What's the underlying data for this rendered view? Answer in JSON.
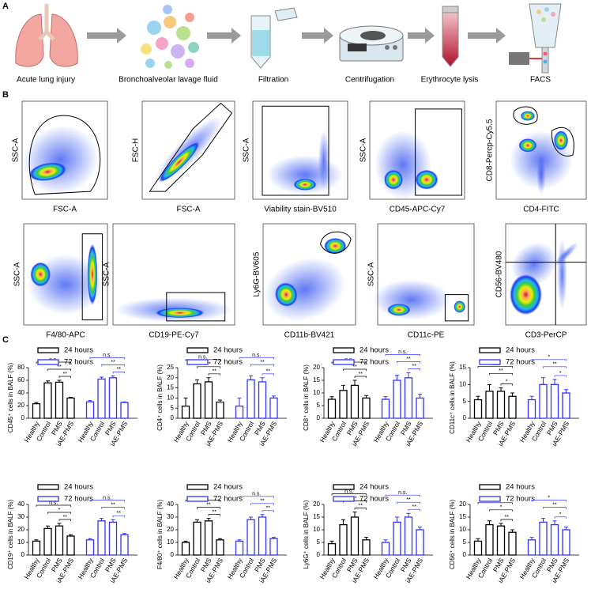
{
  "panels": {
    "a": {
      "label": "A",
      "steps": [
        "Acute lung injury",
        "Bronchoalveolar lavage fluid",
        "Filtration",
        "Centrifugation",
        "Erythrocyte lysis",
        "FACS"
      ]
    },
    "b": {
      "label": "B",
      "plots": [
        {
          "y_label": "SSC-A",
          "x_label": "FSC-A"
        },
        {
          "y_label": "FSC-H",
          "x_label": "FSC-A"
        },
        {
          "y_label": "SSC-A",
          "x_label": "Viability stain-BV510"
        },
        {
          "y_label": "SSC-A",
          "x_label": "CD45-APC-Cy7"
        },
        {
          "y_label": "CD8-Percp-Cy5.5",
          "x_label": "CD4-FITC"
        },
        {
          "y_label": "SSC-A",
          "x_label": "F4/80-APC"
        },
        {
          "y_label": "SSC-A",
          "x_label": "CD19-PE-Cy7"
        },
        {
          "y_label": "Ly6G-BV605",
          "x_label": "CD11b-BV421"
        },
        {
          "y_label": "SSC-A",
          "x_label": "CD11c-PE"
        },
        {
          "y_label": "CD56-BV480",
          "x_label": "CD3-PerCP"
        }
      ]
    },
    "c": {
      "label": "C"
    }
  },
  "chart_data": [
    {
      "type": "bar",
      "ylabel": "CD45⁺ cells  in BALF (%)",
      "categories": [
        "Healthy",
        "Control",
        "PMS",
        "iAE-PMS"
      ],
      "ylim": [
        0,
        80
      ],
      "yticks": [
        0,
        20,
        40,
        60,
        80
      ],
      "series": [
        {
          "name": "24 hours",
          "color": "#000000",
          "values": [
            23,
            56,
            57,
            32
          ],
          "errors": [
            2,
            3,
            3,
            1
          ],
          "significance": [
            "n.s.",
            "**",
            "**"
          ]
        },
        {
          "name": "72 hours",
          "color": "#3333ff",
          "values": [
            26,
            62,
            64,
            25
          ],
          "errors": [
            2,
            3,
            3,
            1
          ],
          "significance": [
            "n.s.",
            "**",
            "**"
          ]
        }
      ]
    },
    {
      "type": "bar",
      "ylabel": "CD4⁺ cells  in BALF (%)",
      "categories": [
        "Healthy",
        "Control",
        "PMS",
        "iAE-PMS"
      ],
      "ylim": [
        0,
        25
      ],
      "yticks": [
        0,
        5,
        10,
        15,
        20,
        25
      ],
      "series": [
        {
          "name": "24 hours",
          "color": "#000000",
          "values": [
            6,
            17,
            18,
            8
          ],
          "errors": [
            4,
            2,
            2,
            1
          ],
          "significance": [
            "n.s.",
            "**",
            "**"
          ]
        },
        {
          "name": "72 hours",
          "color": "#3333ff",
          "values": [
            6,
            19,
            18,
            10
          ],
          "errors": [
            4,
            2,
            2,
            1
          ],
          "significance": [
            "n.s.",
            "**",
            "**"
          ]
        }
      ]
    },
    {
      "type": "bar",
      "ylabel": "CD8⁺ cells  in BALF (%)",
      "categories": [
        "Healthy",
        "Control",
        "PMS",
        "iAE-PMS"
      ],
      "ylim": [
        0,
        20
      ],
      "yticks": [
        0,
        5,
        10,
        15,
        20
      ],
      "series": [
        {
          "name": "24 hours",
          "color": "#000000",
          "values": [
            7.5,
            11,
            13,
            8
          ],
          "errors": [
            1,
            2,
            2,
            1
          ],
          "significance": [
            "n.s.",
            "**",
            "**"
          ]
        },
        {
          "name": "72 hours",
          "color": "#3333ff",
          "values": [
            7.5,
            15,
            16,
            8
          ],
          "errors": [
            1,
            2,
            2,
            1.5
          ],
          "significance": [
            "n.s.",
            "**",
            "**"
          ]
        }
      ]
    },
    {
      "type": "bar",
      "ylabel": "CD11c⁺ cells  in BALF (%)",
      "categories": [
        "Healthy",
        "Control",
        "PMS",
        "iAE-PMS"
      ],
      "ylim": [
        0,
        15
      ],
      "yticks": [
        0,
        5,
        10,
        15
      ],
      "series": [
        {
          "name": "24 hours",
          "color": "#000000",
          "values": [
            5.5,
            8,
            8,
            6.5
          ],
          "errors": [
            1,
            2,
            1,
            1
          ],
          "significance": [
            "n.s.",
            "**",
            "*"
          ]
        },
        {
          "name": "72 hours",
          "color": "#3333ff",
          "values": [
            5.5,
            10,
            10,
            7.5
          ],
          "errors": [
            1,
            2,
            1.5,
            1
          ],
          "significance": [
            "*",
            "**",
            "*"
          ]
        }
      ]
    },
    {
      "type": "bar",
      "ylabel": "CD19⁺ cells  in BALF (%)",
      "categories": [
        "Healthy",
        "Control",
        "PMS",
        "iAE-PMS"
      ],
      "ylim": [
        0,
        40
      ],
      "yticks": [
        0,
        10,
        20,
        30,
        40
      ],
      "series": [
        {
          "name": "24 hours",
          "color": "#000000",
          "values": [
            11,
            21,
            23,
            15
          ],
          "errors": [
            1,
            2,
            2,
            1
          ],
          "significance": [
            "n.s.",
            "*",
            "**"
          ]
        },
        {
          "name": "72 hours",
          "color": "#3333ff",
          "values": [
            12,
            27,
            26,
            16
          ],
          "errors": [
            1,
            2,
            2,
            1
          ],
          "significance": [
            "n.s.",
            "**",
            "**"
          ]
        }
      ]
    },
    {
      "type": "bar",
      "ylabel": "F4/80⁺ cells  in BALF (%)",
      "categories": [
        "Healthy",
        "Control",
        "PMS",
        "iAE-PMS"
      ],
      "ylim": [
        0,
        40
      ],
      "yticks": [
        0,
        10,
        20,
        30,
        40
      ],
      "series": [
        {
          "name": "24 hours",
          "color": "#000000",
          "values": [
            10,
            26,
            27,
            12
          ],
          "errors": [
            1,
            2,
            2,
            1
          ],
          "significance": [
            "n.s.",
            "**",
            "**"
          ]
        },
        {
          "name": "72 hours",
          "color": "#3333ff",
          "values": [
            11,
            28,
            30,
            13
          ],
          "errors": [
            1,
            2,
            2,
            1
          ],
          "significance": [
            "n.s.",
            "**",
            "**"
          ]
        }
      ]
    },
    {
      "type": "bar",
      "ylabel": "Ly6G⁺ cells  in BALF (%)",
      "categories": [
        "Healthy",
        "Control",
        "PMS",
        "iAE-PMS"
      ],
      "ylim": [
        0,
        20
      ],
      "yticks": [
        0,
        5,
        10,
        15,
        20
      ],
      "series": [
        {
          "name": "24 hours",
          "color": "#000000",
          "values": [
            4.5,
            12,
            15,
            6
          ],
          "errors": [
            1,
            2,
            2,
            1
          ],
          "significance": [
            "n.s.",
            "**",
            "**"
          ]
        },
        {
          "name": "72 hours",
          "color": "#3333ff",
          "values": [
            5,
            13,
            15,
            10
          ],
          "errors": [
            1,
            2,
            1.5,
            1
          ],
          "significance": [
            "n.s.",
            "**",
            "**"
          ]
        }
      ]
    },
    {
      "type": "bar",
      "ylabel": "CD56⁺ cells  in BALF (%)",
      "categories": [
        "Healthy",
        "Control",
        "PMS",
        "iAE-PMS"
      ],
      "ylim": [
        0,
        20
      ],
      "yticks": [
        0,
        5,
        10,
        15,
        20
      ],
      "series": [
        {
          "name": "24 hours",
          "color": "#000000",
          "values": [
            5.5,
            12,
            11.5,
            9
          ],
          "errors": [
            1,
            1.5,
            1,
            1
          ],
          "significance": [
            "*",
            "*",
            "**"
          ]
        },
        {
          "name": "72 hours",
          "color": "#3333ff",
          "values": [
            6,
            13,
            12,
            10
          ],
          "errors": [
            1,
            1.5,
            1.5,
            1
          ],
          "significance": [
            "*",
            "**",
            "*"
          ]
        }
      ]
    }
  ]
}
